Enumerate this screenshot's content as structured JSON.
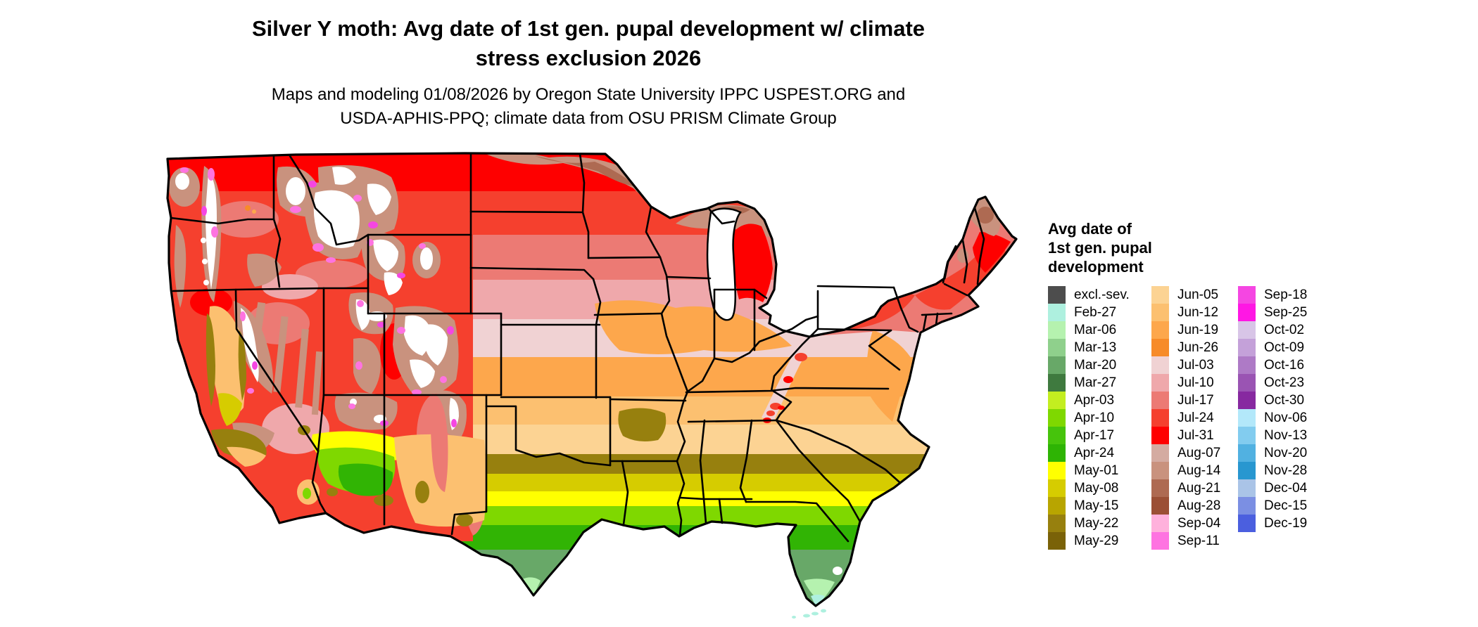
{
  "title": {
    "line1": "Silver Y moth: Avg date of 1st gen. pupal development w/ climate",
    "line2": "stress exclusion 2026"
  },
  "subtitle": {
    "line1": "Maps and modeling 01/08/2026 by Oregon State University IPPC USPEST.ORG and",
    "line2": "USDA-APHIS-PPQ; climate data from OSU PRISM Climate Group"
  },
  "map": {
    "region": "Contiguous United States",
    "kind": "raster choropleth of average date of first generation pupal development"
  },
  "legend": {
    "title_lines": [
      "Avg date of",
      "1st gen. pupal",
      "development"
    ],
    "columns": [
      {
        "entries": [
          {
            "label": "excl.-sev.",
            "color": "#4d4d4d"
          },
          {
            "label": "Feb-27",
            "color": "#aef0df"
          },
          {
            "label": "Mar-06",
            "color": "#b5f2af"
          },
          {
            "label": "Mar-13",
            "color": "#8fd08c"
          },
          {
            "label": "Mar-20",
            "color": "#68a868"
          },
          {
            "label": "Mar-27",
            "color": "#3f7a3f"
          },
          {
            "label": "Apr-03",
            "color": "#c3ee20"
          },
          {
            "label": "Apr-10",
            "color": "#7fd800"
          },
          {
            "label": "Apr-17",
            "color": "#46c40c"
          },
          {
            "label": "Apr-24",
            "color": "#2eb404"
          },
          {
            "label": "May-01",
            "color": "#ffff00"
          },
          {
            "label": "May-08",
            "color": "#d6cc00"
          },
          {
            "label": "May-15",
            "color": "#b8a500"
          },
          {
            "label": "May-22",
            "color": "#97800e"
          },
          {
            "label": "May-29",
            "color": "#7a6208"
          }
        ]
      },
      {
        "entries": [
          {
            "label": "Jun-05",
            "color": "#fcd393"
          },
          {
            "label": "Jun-12",
            "color": "#fcc070"
          },
          {
            "label": "Jun-19",
            "color": "#fda74c"
          },
          {
            "label": "Jun-26",
            "color": "#f78b29"
          },
          {
            "label": "Jul-03",
            "color": "#f0d2d3"
          },
          {
            "label": "Jul-10",
            "color": "#efa8ab"
          },
          {
            "label": "Jul-17",
            "color": "#ec7a74"
          },
          {
            "label": "Jul-24",
            "color": "#f5402e"
          },
          {
            "label": "Jul-31",
            "color": "#fe0000"
          },
          {
            "label": "Aug-07",
            "color": "#d4aba1"
          },
          {
            "label": "Aug-14",
            "color": "#c9927e"
          },
          {
            "label": "Aug-21",
            "color": "#ae6a52"
          },
          {
            "label": "Aug-28",
            "color": "#9b4f35"
          },
          {
            "label": "Sep-04",
            "color": "#ffb1dc"
          },
          {
            "label": "Sep-11",
            "color": "#fe73e1"
          }
        ]
      },
      {
        "entries": [
          {
            "label": "Sep-18",
            "color": "#f546e2"
          },
          {
            "label": "Sep-25",
            "color": "#ff17e4"
          },
          {
            "label": "Oct-02",
            "color": "#d8c5e7"
          },
          {
            "label": "Oct-09",
            "color": "#c4a1d9"
          },
          {
            "label": "Oct-16",
            "color": "#ae7ac6"
          },
          {
            "label": "Oct-23",
            "color": "#9a54b3"
          },
          {
            "label": "Oct-30",
            "color": "#8729a0"
          },
          {
            "label": "Nov-06",
            "color": "#b3e8fa"
          },
          {
            "label": "Nov-13",
            "color": "#82ccef"
          },
          {
            "label": "Nov-20",
            "color": "#51b1e1"
          },
          {
            "label": "Nov-28",
            "color": "#2897d0"
          },
          {
            "label": "Dec-04",
            "color": "#aac4e7"
          },
          {
            "label": "Dec-15",
            "color": "#7b8fe3"
          },
          {
            "label": "Dec-19",
            "color": "#4b5fdf"
          }
        ]
      }
    ]
  }
}
